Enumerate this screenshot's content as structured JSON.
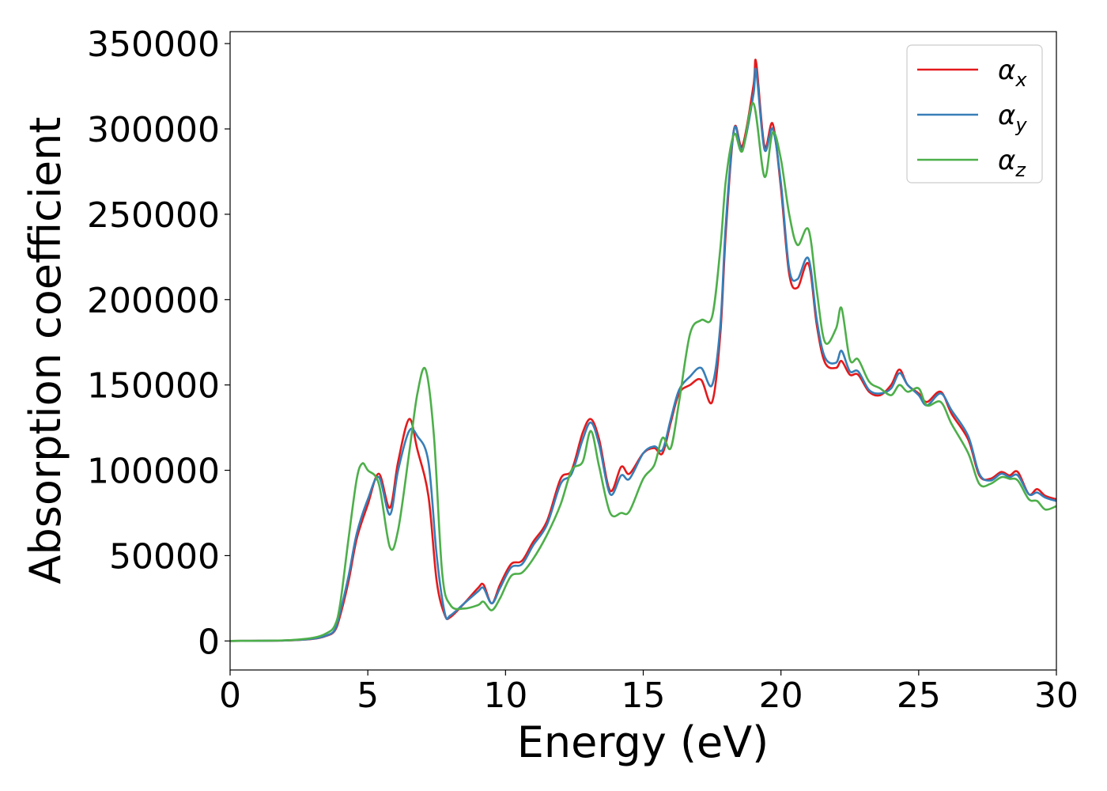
{
  "chart_data": {
    "type": "line",
    "xlabel": "Energy (eV)",
    "ylabel": "Absorption coefficient",
    "xlim": [
      0,
      30
    ],
    "ylim": [
      -17000,
      357000
    ],
    "xticks": [
      0,
      5,
      10,
      15,
      20,
      25,
      30
    ],
    "yticks": [
      0,
      50000,
      100000,
      150000,
      200000,
      250000,
      300000,
      350000
    ],
    "grid": false,
    "legend_position": "top-right",
    "series": [
      {
        "name": "αx",
        "name_base": "α",
        "name_sub": "x",
        "color": "#e41a1c",
        "x": [
          0,
          2,
          3,
          3.5,
          3.8,
          4.0,
          4.3,
          4.6,
          5.0,
          5.4,
          5.8,
          6.1,
          6.5,
          6.8,
          7.2,
          7.5,
          7.8,
          8.0,
          8.5,
          9.0,
          9.2,
          9.5,
          9.8,
          10.2,
          10.6,
          11.0,
          11.5,
          12.0,
          12.4,
          12.8,
          13.1,
          13.4,
          13.8,
          14.2,
          14.5,
          15.0,
          15.4,
          15.7,
          16.0,
          16.3,
          16.7,
          17.1,
          17.5,
          17.8,
          18.0,
          18.3,
          18.6,
          19.0,
          19.1,
          19.4,
          19.7,
          20.0,
          20.3,
          20.6,
          21.0,
          21.3,
          21.6,
          22.0,
          22.2,
          22.5,
          22.8,
          23.2,
          23.6,
          24.0,
          24.3,
          24.6,
          25.0,
          25.3,
          25.8,
          26.2,
          26.8,
          27.2,
          27.6,
          28.0,
          28.3,
          28.6,
          29.0,
          29.3,
          29.6,
          30.0
        ],
        "y": [
          0,
          300,
          1200,
          3000,
          6000,
          15000,
          35000,
          60000,
          80000,
          98000,
          78000,
          105000,
          130000,
          112000,
          85000,
          35000,
          15000,
          14000,
          22000,
          31000,
          33000,
          22000,
          33000,
          45000,
          47000,
          58000,
          70000,
          95000,
          100000,
          122000,
          130000,
          118000,
          88000,
          102000,
          98000,
          110000,
          113000,
          110000,
          128000,
          145000,
          150000,
          153000,
          140000,
          180000,
          240000,
          300000,
          290000,
          325000,
          339000,
          290000,
          303000,
          265000,
          215000,
          207000,
          221000,
          185000,
          163000,
          160000,
          164000,
          156000,
          156000,
          146000,
          144000,
          150000,
          159000,
          150000,
          145000,
          140000,
          146000,
          133000,
          118000,
          97000,
          95000,
          99000,
          97000,
          99000,
          86000,
          89000,
          85000,
          83000
        ]
      },
      {
        "name": "αy",
        "name_base": "α",
        "name_sub": "y",
        "color": "#377eb8",
        "x": [
          0,
          2,
          3,
          3.5,
          3.8,
          4.0,
          4.3,
          4.6,
          5.0,
          5.4,
          5.8,
          6.1,
          6.5,
          6.8,
          7.2,
          7.5,
          7.8,
          8.0,
          8.5,
          9.0,
          9.2,
          9.5,
          9.8,
          10.2,
          10.6,
          11.0,
          11.5,
          12.0,
          12.4,
          12.8,
          13.1,
          13.4,
          13.8,
          14.2,
          14.5,
          15.0,
          15.4,
          15.7,
          16.0,
          16.3,
          16.7,
          17.1,
          17.5,
          17.8,
          18.0,
          18.3,
          18.6,
          19.0,
          19.1,
          19.4,
          19.7,
          20.0,
          20.3,
          20.6,
          21.0,
          21.3,
          21.6,
          22.0,
          22.2,
          22.5,
          22.8,
          23.2,
          23.6,
          24.0,
          24.3,
          24.6,
          25.0,
          25.3,
          25.8,
          26.2,
          26.8,
          27.2,
          27.6,
          28.0,
          28.3,
          28.6,
          29.0,
          29.3,
          29.6,
          30.0
        ],
        "y": [
          0,
          300,
          1300,
          3200,
          6500,
          17000,
          38000,
          63000,
          83000,
          96000,
          74000,
          100000,
          123000,
          120000,
          105000,
          50000,
          16000,
          15000,
          22000,
          29000,
          31000,
          22000,
          31000,
          43000,
          45000,
          56000,
          68000,
          92000,
          98000,
          118000,
          128000,
          115000,
          86000,
          97000,
          95000,
          110000,
          114000,
          112000,
          130000,
          147000,
          155000,
          160000,
          150000,
          185000,
          245000,
          300000,
          288000,
          320000,
          334000,
          288000,
          300000,
          268000,
          218000,
          212000,
          224000,
          188000,
          166000,
          163000,
          170000,
          158000,
          158000,
          147000,
          145000,
          148000,
          157000,
          150000,
          144000,
          138000,
          145000,
          135000,
          120000,
          98000,
          94000,
          98000,
          96000,
          97000,
          86000,
          87000,
          84000,
          82000
        ]
      },
      {
        "name": "αz",
        "name_base": "α",
        "name_sub": "z",
        "color": "#4daf4a",
        "x": [
          0,
          2,
          3,
          3.5,
          3.8,
          4.0,
          4.3,
          4.6,
          4.8,
          5.0,
          5.4,
          5.8,
          6.1,
          6.5,
          6.8,
          7.1,
          7.4,
          7.7,
          8.0,
          8.5,
          9.0,
          9.2,
          9.5,
          9.8,
          10.2,
          10.6,
          11.0,
          11.5,
          12.0,
          12.4,
          12.8,
          13.1,
          13.4,
          13.8,
          14.2,
          14.5,
          15.0,
          15.4,
          15.7,
          16.0,
          16.3,
          16.7,
          17.1,
          17.5,
          17.8,
          18.0,
          18.3,
          18.6,
          19.0,
          19.4,
          19.7,
          20.0,
          20.3,
          20.6,
          21.0,
          21.3,
          21.6,
          22.0,
          22.2,
          22.5,
          22.8,
          23.2,
          23.6,
          24.0,
          24.3,
          24.6,
          25.0,
          25.3,
          25.8,
          26.2,
          26.8,
          27.2,
          27.6,
          28.0,
          28.3,
          28.6,
          29.0,
          29.3,
          29.6,
          30.0
        ],
        "y": [
          0,
          400,
          1800,
          4500,
          9000,
          22000,
          60000,
          95000,
          104000,
          100000,
          92000,
          55000,
          65000,
          110000,
          145000,
          159000,
          120000,
          40000,
          21000,
          19000,
          21000,
          23000,
          18000,
          25000,
          38000,
          40000,
          48000,
          62000,
          80000,
          100000,
          105000,
          123000,
          102000,
          75000,
          75000,
          76000,
          95000,
          103000,
          119000,
          113000,
          140000,
          180000,
          188000,
          190000,
          230000,
          270000,
          297000,
          287000,
          315000,
          272000,
          298000,
          282000,
          250000,
          232000,
          241000,
          205000,
          175000,
          183000,
          195000,
          165000,
          165000,
          152000,
          148000,
          144000,
          150000,
          146000,
          148000,
          138000,
          140000,
          127000,
          110000,
          92000,
          92000,
          96000,
          95000,
          94000,
          83000,
          82000,
          77000,
          79000
        ]
      }
    ]
  }
}
